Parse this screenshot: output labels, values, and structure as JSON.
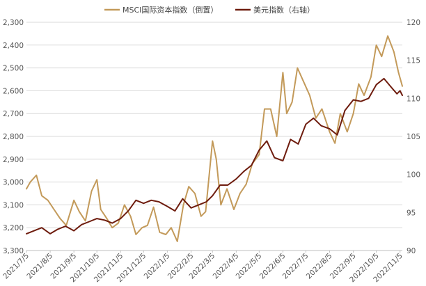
{
  "chart_data": {
    "type": "line",
    "title": "",
    "xlabel": "",
    "legend_position": "top-center",
    "grid": "horizontal",
    "x_tick_labels": [
      "2021/7/5",
      "2021/8/5",
      "2021/9/5",
      "2021/10/5",
      "2021/11/5",
      "2021/12/5",
      "2022/1/5",
      "2022/2/5",
      "2022/3/5",
      "2022/4/5",
      "2022/5/5",
      "2022/6/5",
      "2022/7/5",
      "2022/8/5",
      "2022/9/5",
      "2022/10/5",
      "2022/11/5"
    ],
    "x_range": [
      "2021-07-05",
      "2022-11-08"
    ],
    "y_left": {
      "label": "",
      "min": 2300,
      "max": 3300,
      "inverted": true,
      "ticks": [
        "2,300",
        "2,400",
        "2,500",
        "2,600",
        "2,700",
        "2,800",
        "2,900",
        "3,000",
        "3,100",
        "3,200",
        "3,300"
      ]
    },
    "y_right": {
      "label": "",
      "min": 90,
      "max": 120,
      "inverted": false,
      "ticks": [
        "90",
        "95",
        "100",
        "105",
        "110",
        "115",
        "120"
      ]
    },
    "series": [
      {
        "name": "MSCI国际资本指数（倒置）",
        "axis": "left",
        "color": "#C39A5A",
        "x": [
          "2021-07-05",
          "2021-07-10",
          "2021-07-18",
          "2021-07-25",
          "2021-08-02",
          "2021-08-10",
          "2021-08-18",
          "2021-08-26",
          "2021-09-05",
          "2021-09-12",
          "2021-09-20",
          "2021-09-28",
          "2021-10-05",
          "2021-10-10",
          "2021-10-18",
          "2021-10-25",
          "2021-11-02",
          "2021-11-10",
          "2021-11-18",
          "2021-11-25",
          "2021-12-03",
          "2021-12-10",
          "2021-12-18",
          "2021-12-26",
          "2022-01-03",
          "2022-01-10",
          "2022-01-18",
          "2022-01-26",
          "2022-02-02",
          "2022-02-10",
          "2022-02-18",
          "2022-02-24",
          "2022-03-05",
          "2022-03-10",
          "2022-03-16",
          "2022-03-24",
          "2022-04-02",
          "2022-04-10",
          "2022-04-18",
          "2022-04-26",
          "2022-05-05",
          "2022-05-12",
          "2022-05-20",
          "2022-05-28",
          "2022-06-05",
          "2022-06-10",
          "2022-06-17",
          "2022-06-24",
          "2022-07-02",
          "2022-07-10",
          "2022-07-18",
          "2022-07-26",
          "2022-08-05",
          "2022-08-12",
          "2022-08-19",
          "2022-08-28",
          "2022-09-05",
          "2022-09-12",
          "2022-09-19",
          "2022-09-28",
          "2022-10-05",
          "2022-10-12",
          "2022-10-20",
          "2022-10-28",
          "2022-11-03",
          "2022-11-08"
        ],
        "values": [
          3030,
          3000,
          2970,
          3060,
          3080,
          3120,
          3160,
          3190,
          3080,
          3130,
          3170,
          3040,
          2990,
          3120,
          3160,
          3200,
          3180,
          3100,
          3150,
          3230,
          3200,
          3190,
          3110,
          3220,
          3230,
          3200,
          3260,
          3100,
          3020,
          3050,
          3150,
          3130,
          2820,
          2900,
          3100,
          3030,
          3120,
          3050,
          3010,
          2920,
          2880,
          2680,
          2680,
          2800,
          2520,
          2700,
          2650,
          2500,
          2560,
          2620,
          2720,
          2680,
          2780,
          2830,
          2700,
          2780,
          2700,
          2570,
          2620,
          2540,
          2400,
          2450,
          2360,
          2430,
          2520,
          2580
        ]
      },
      {
        "name": "美元指数（右轴）",
        "axis": "right",
        "color": "#6E1C0E",
        "x": [
          "2021-07-05",
          "2021-07-15",
          "2021-07-25",
          "2021-08-05",
          "2021-08-15",
          "2021-08-25",
          "2021-09-05",
          "2021-09-15",
          "2021-09-25",
          "2021-10-05",
          "2021-10-15",
          "2021-10-25",
          "2021-11-05",
          "2021-11-15",
          "2021-11-25",
          "2021-12-05",
          "2021-12-15",
          "2021-12-25",
          "2022-01-05",
          "2022-01-15",
          "2022-01-25",
          "2022-02-05",
          "2022-02-15",
          "2022-02-25",
          "2022-03-05",
          "2022-03-15",
          "2022-03-25",
          "2022-04-05",
          "2022-04-15",
          "2022-04-25",
          "2022-05-05",
          "2022-05-15",
          "2022-05-25",
          "2022-06-05",
          "2022-06-15",
          "2022-06-25",
          "2022-07-05",
          "2022-07-15",
          "2022-07-25",
          "2022-08-05",
          "2022-08-15",
          "2022-08-25",
          "2022-09-05",
          "2022-09-15",
          "2022-09-25",
          "2022-10-05",
          "2022-10-15",
          "2022-10-25",
          "2022-11-01",
          "2022-11-05",
          "2022-11-08"
        ],
        "values": [
          92.2,
          92.6,
          93.0,
          92.2,
          92.8,
          93.2,
          92.6,
          93.4,
          93.8,
          94.2,
          94.0,
          93.6,
          94.2,
          95.2,
          96.6,
          96.2,
          96.6,
          96.4,
          95.8,
          95.2,
          96.8,
          95.6,
          96.0,
          96.4,
          97.2,
          98.6,
          98.6,
          99.4,
          100.4,
          101.2,
          103.2,
          104.4,
          102.2,
          101.8,
          104.6,
          104.0,
          106.6,
          107.4,
          106.4,
          106.0,
          105.2,
          108.4,
          109.8,
          109.6,
          110.0,
          111.8,
          112.6,
          111.4,
          110.6,
          111.0,
          110.4
        ]
      }
    ]
  },
  "legend": {
    "series1_label": "MSCI国际资本指数（倒置）",
    "series2_label": "美元指数（右轴）"
  }
}
